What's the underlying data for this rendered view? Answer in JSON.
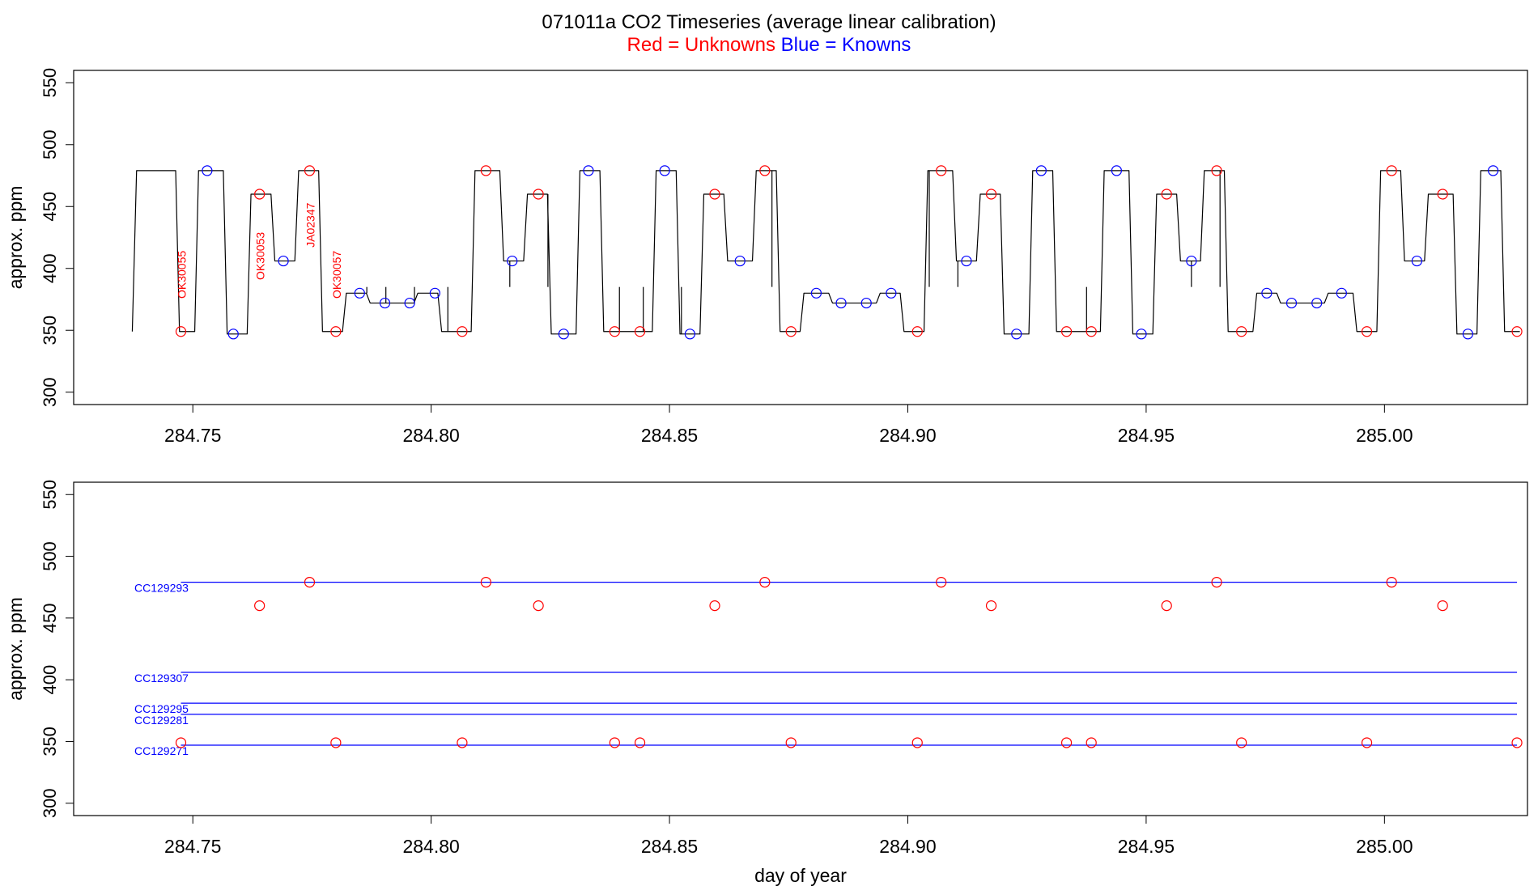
{
  "title": "071011a   CO2 Timeseries (average linear calibration)",
  "subtitle": {
    "red_text": "Red = Unknowns",
    "blue_text": "Blue = Knowns"
  },
  "colors": {
    "unknown": "#ff0000",
    "known": "#0000ff",
    "trace": "#000000"
  },
  "chart_data": [
    {
      "type": "line",
      "panel": "top",
      "ylabel": "approx. ppm",
      "xlabel": "",
      "xlim": [
        284.725,
        285.03
      ],
      "ylim": [
        290,
        560
      ],
      "x_ticks": [
        284.75,
        284.8,
        284.85,
        284.9,
        284.95,
        285.0
      ],
      "x_tick_labels": [
        "284.75",
        "284.80",
        "284.85",
        "284.90",
        "284.95",
        "285.00"
      ],
      "y_ticks": [
        300,
        350,
        400,
        450,
        500,
        550
      ],
      "y_tick_labels": [
        "300",
        "350",
        "400",
        "450",
        "500",
        "550"
      ],
      "trace_steps": [
        {
          "start": 284.7375,
          "end": 284.7465,
          "value": 479
        },
        {
          "start": 284.7465,
          "end": 284.7505,
          "value": 349
        },
        {
          "start": 284.7505,
          "end": 284.7565,
          "value": 479
        },
        {
          "start": 284.7565,
          "end": 284.7615,
          "value": 347
        },
        {
          "start": 284.7615,
          "end": 284.7665,
          "value": 460
        },
        {
          "start": 284.7665,
          "end": 284.7715,
          "value": 406
        },
        {
          "start": 284.7715,
          "end": 284.7765,
          "value": 479
        },
        {
          "start": 284.7765,
          "end": 284.7815,
          "value": 349
        },
        {
          "start": 284.7815,
          "end": 284.7865,
          "value": 380
        },
        {
          "start": 284.7865,
          "end": 284.7965,
          "value": 372
        },
        {
          "start": 284.7965,
          "end": 284.8015,
          "value": 380
        },
        {
          "start": 284.8015,
          "end": 284.8085,
          "value": 349
        },
        {
          "start": 284.8085,
          "end": 284.8145,
          "value": 479
        },
        {
          "start": 284.8145,
          "end": 284.8195,
          "value": 406
        },
        {
          "start": 284.8195,
          "end": 284.8245,
          "value": 460
        },
        {
          "start": 284.8245,
          "end": 284.8305,
          "value": 347
        },
        {
          "start": 284.8305,
          "end": 284.8355,
          "value": 479
        },
        {
          "start": 284.8355,
          "end": 284.8465,
          "value": 349
        },
        {
          "start": 284.8465,
          "end": 284.8515,
          "value": 479
        },
        {
          "start": 284.8515,
          "end": 284.8565,
          "value": 347
        },
        {
          "start": 284.8565,
          "end": 284.8615,
          "value": 460
        },
        {
          "start": 284.8615,
          "end": 284.8675,
          "value": 406
        },
        {
          "start": 284.8675,
          "end": 284.8725,
          "value": 479
        },
        {
          "start": 284.8725,
          "end": 284.8775,
          "value": 349
        },
        {
          "start": 284.8775,
          "end": 284.8835,
          "value": 380
        },
        {
          "start": 284.8835,
          "end": 284.8935,
          "value": 372
        },
        {
          "start": 284.8935,
          "end": 284.8985,
          "value": 380
        },
        {
          "start": 284.8985,
          "end": 284.9035,
          "value": 349
        },
        {
          "start": 284.9035,
          "end": 284.9095,
          "value": 479
        },
        {
          "start": 284.9095,
          "end": 284.9145,
          "value": 406
        },
        {
          "start": 284.9145,
          "end": 284.9195,
          "value": 460
        },
        {
          "start": 284.9195,
          "end": 284.9255,
          "value": 347
        },
        {
          "start": 284.9255,
          "end": 284.9305,
          "value": 479
        },
        {
          "start": 284.9305,
          "end": 284.9405,
          "value": 349
        },
        {
          "start": 284.9405,
          "end": 284.9465,
          "value": 479
        },
        {
          "start": 284.9465,
          "end": 284.9515,
          "value": 347
        },
        {
          "start": 284.9515,
          "end": 284.9565,
          "value": 460
        },
        {
          "start": 284.9565,
          "end": 284.9615,
          "value": 406
        },
        {
          "start": 284.9615,
          "end": 284.9665,
          "value": 479
        },
        {
          "start": 284.9665,
          "end": 284.9725,
          "value": 349
        },
        {
          "start": 284.9725,
          "end": 284.9775,
          "value": 380
        },
        {
          "start": 284.9775,
          "end": 284.9875,
          "value": 372
        },
        {
          "start": 284.9875,
          "end": 284.9935,
          "value": 380
        },
        {
          "start": 284.9935,
          "end": 284.9985,
          "value": 349
        },
        {
          "start": 284.9985,
          "end": 285.0035,
          "value": 479
        },
        {
          "start": 285.0035,
          "end": 285.0085,
          "value": 406
        },
        {
          "start": 285.0085,
          "end": 285.0145,
          "value": 460
        },
        {
          "start": 285.0145,
          "end": 285.0195,
          "value": 347
        },
        {
          "start": 285.0195,
          "end": 285.0245,
          "value": 479
        },
        {
          "start": 285.0245,
          "end": 285.0285,
          "value": 349
        }
      ],
      "spikes": [
        {
          "x": 284.7865,
          "value": 385
        },
        {
          "x": 284.7905,
          "value": 385
        },
        {
          "x": 284.7965,
          "value": 385
        },
        {
          "x": 284.8035,
          "value": 385
        },
        {
          "x": 284.8165,
          "value": 385
        },
        {
          "x": 284.8245,
          "value": 385
        },
        {
          "x": 284.8395,
          "value": 385
        },
        {
          "x": 284.8445,
          "value": 385
        },
        {
          "x": 284.8525,
          "value": 385
        },
        {
          "x": 284.8715,
          "value": 385
        },
        {
          "x": 284.9045,
          "value": 385
        },
        {
          "x": 284.9105,
          "value": 385
        },
        {
          "x": 284.9375,
          "value": 385
        },
        {
          "x": 284.9595,
          "value": 385
        },
        {
          "x": 284.9655,
          "value": 385
        }
      ],
      "unknowns": [
        {
          "x": 284.7475,
          "y": 349
        },
        {
          "x": 284.764,
          "y": 460
        },
        {
          "x": 284.7745,
          "y": 479
        },
        {
          "x": 284.78,
          "y": 349
        },
        {
          "x": 284.8065,
          "y": 349
        },
        {
          "x": 284.8115,
          "y": 479
        },
        {
          "x": 284.8225,
          "y": 460
        },
        {
          "x": 284.8385,
          "y": 349
        },
        {
          "x": 284.8438,
          "y": 349
        },
        {
          "x": 284.8595,
          "y": 460
        },
        {
          "x": 284.87,
          "y": 479
        },
        {
          "x": 284.8755,
          "y": 349
        },
        {
          "x": 284.902,
          "y": 349
        },
        {
          "x": 284.907,
          "y": 479
        },
        {
          "x": 284.9175,
          "y": 460
        },
        {
          "x": 284.9333,
          "y": 349
        },
        {
          "x": 284.9385,
          "y": 349
        },
        {
          "x": 284.9543,
          "y": 460
        },
        {
          "x": 284.9648,
          "y": 479
        },
        {
          "x": 284.97,
          "y": 349
        },
        {
          "x": 284.9963,
          "y": 349
        },
        {
          "x": 285.0015,
          "y": 479
        },
        {
          "x": 285.0122,
          "y": 460
        },
        {
          "x": 285.0278,
          "y": 349
        }
      ],
      "knowns": [
        {
          "x": 284.753,
          "y": 479
        },
        {
          "x": 284.7585,
          "y": 347
        },
        {
          "x": 284.769,
          "y": 406
        },
        {
          "x": 284.785,
          "y": 380
        },
        {
          "x": 284.7903,
          "y": 372
        },
        {
          "x": 284.7955,
          "y": 372
        },
        {
          "x": 284.8008,
          "y": 380
        },
        {
          "x": 284.817,
          "y": 406
        },
        {
          "x": 284.8278,
          "y": 347
        },
        {
          "x": 284.833,
          "y": 479
        },
        {
          "x": 284.849,
          "y": 479
        },
        {
          "x": 284.8543,
          "y": 347
        },
        {
          "x": 284.8648,
          "y": 406
        },
        {
          "x": 284.8808,
          "y": 380
        },
        {
          "x": 284.886,
          "y": 372
        },
        {
          "x": 284.8913,
          "y": 372
        },
        {
          "x": 284.8965,
          "y": 380
        },
        {
          "x": 284.9123,
          "y": 406
        },
        {
          "x": 284.9228,
          "y": 347
        },
        {
          "x": 284.928,
          "y": 479
        },
        {
          "x": 284.9438,
          "y": 479
        },
        {
          "x": 284.949,
          "y": 347
        },
        {
          "x": 284.9595,
          "y": 406
        },
        {
          "x": 284.9753,
          "y": 380
        },
        {
          "x": 284.9805,
          "y": 372
        },
        {
          "x": 284.9858,
          "y": 372
        },
        {
          "x": 284.991,
          "y": 380
        },
        {
          "x": 285.0068,
          "y": 406
        },
        {
          "x": 285.0175,
          "y": 347
        },
        {
          "x": 285.0228,
          "y": 479
        }
      ],
      "annotations": [
        {
          "text": "OK30055",
          "x": 284.7475,
          "y": 395
        },
        {
          "text": "OK30053",
          "x": 284.764,
          "y": 410
        },
        {
          "text": "JA02347",
          "x": 284.7745,
          "y": 435
        },
        {
          "text": "OK30057",
          "x": 284.78,
          "y": 395
        }
      ]
    },
    {
      "type": "scatter",
      "panel": "bottom",
      "ylabel": "approx. ppm",
      "xlabel": "day of year",
      "xlim": [
        284.725,
        285.03
      ],
      "ylim": [
        290,
        560
      ],
      "x_ticks": [
        284.75,
        284.8,
        284.85,
        284.9,
        284.95,
        285.0
      ],
      "x_tick_labels": [
        "284.75",
        "284.80",
        "284.85",
        "284.90",
        "284.95",
        "285.00"
      ],
      "y_ticks": [
        300,
        350,
        400,
        450,
        500,
        550
      ],
      "y_tick_labels": [
        "300",
        "350",
        "400",
        "450",
        "500",
        "550"
      ],
      "reference_lines": [
        {
          "name": "CC129293",
          "value": 479,
          "x_start": 284.7475,
          "x_end": 285.0278
        },
        {
          "name": "CC129307",
          "value": 406,
          "x_start": 284.7475,
          "x_end": 285.0278
        },
        {
          "name": "CC129295",
          "value": 381,
          "x_start": 284.7475,
          "x_end": 285.0278
        },
        {
          "name": "CC129281",
          "value": 372,
          "x_start": 284.7475,
          "x_end": 285.0278
        },
        {
          "name": "CC129271",
          "value": 347,
          "x_start": 284.7475,
          "x_end": 285.0278
        }
      ],
      "unknowns": [
        {
          "x": 284.7475,
          "y": 349
        },
        {
          "x": 284.764,
          "y": 460
        },
        {
          "x": 284.7745,
          "y": 479
        },
        {
          "x": 284.78,
          "y": 349
        },
        {
          "x": 284.8065,
          "y": 349
        },
        {
          "x": 284.8115,
          "y": 479
        },
        {
          "x": 284.8225,
          "y": 460
        },
        {
          "x": 284.8385,
          "y": 349
        },
        {
          "x": 284.8438,
          "y": 349
        },
        {
          "x": 284.8595,
          "y": 460
        },
        {
          "x": 284.87,
          "y": 479
        },
        {
          "x": 284.8755,
          "y": 349
        },
        {
          "x": 284.902,
          "y": 349
        },
        {
          "x": 284.907,
          "y": 479
        },
        {
          "x": 284.9175,
          "y": 460
        },
        {
          "x": 284.9333,
          "y": 349
        },
        {
          "x": 284.9385,
          "y": 349
        },
        {
          "x": 284.9543,
          "y": 460
        },
        {
          "x": 284.9648,
          "y": 479
        },
        {
          "x": 284.97,
          "y": 349
        },
        {
          "x": 284.9963,
          "y": 349
        },
        {
          "x": 285.0015,
          "y": 479
        },
        {
          "x": 285.0122,
          "y": 460
        },
        {
          "x": 285.0278,
          "y": 349
        }
      ]
    }
  ]
}
